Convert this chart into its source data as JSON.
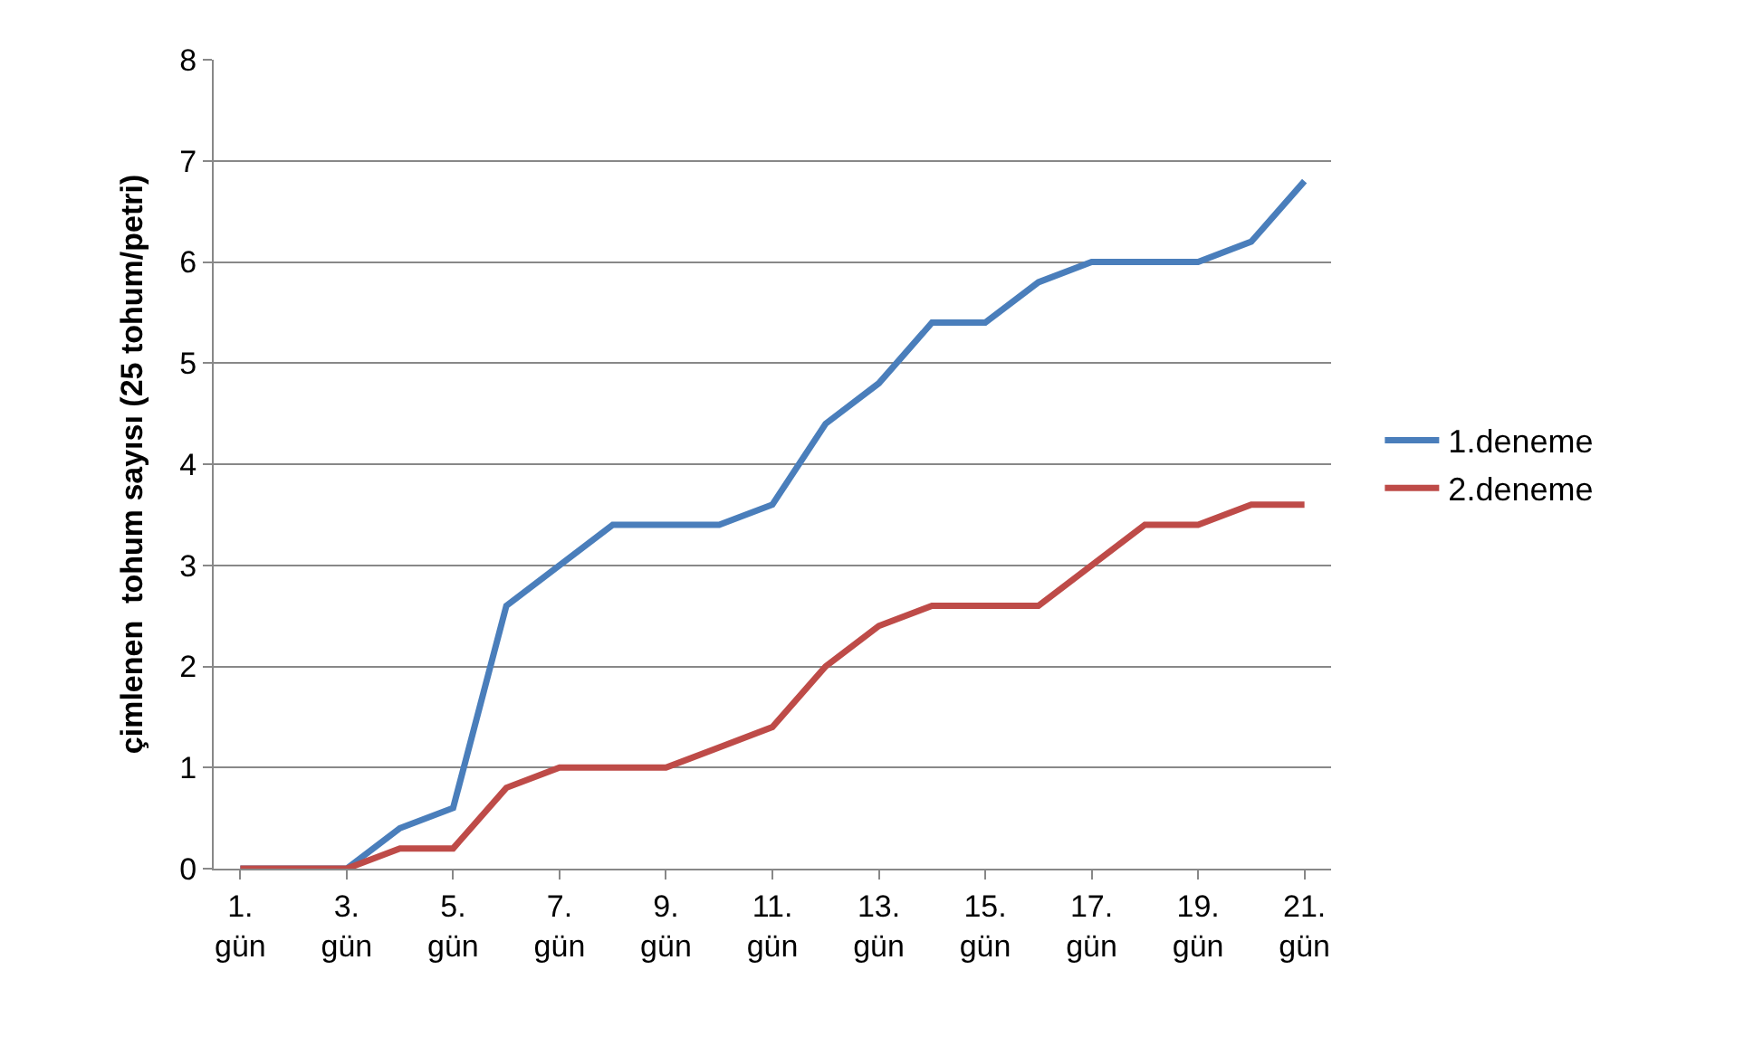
{
  "chart_data": {
    "type": "line",
    "ylabel": "çimlenen  tohum sayısı (25 tohum/petri)",
    "categories": [
      "1. gün",
      null,
      "3. gün",
      null,
      "5. gün",
      null,
      "7. gün",
      null,
      "9. gün",
      null,
      "11. gün",
      null,
      "13. gün",
      null,
      "15. gün",
      null,
      "17. gün",
      null,
      "19. gün",
      null,
      "21. gün"
    ],
    "series": [
      {
        "name": "1.deneme",
        "color": "#4a7ebb",
        "values": [
          0,
          0,
          0,
          0.4,
          0.6,
          2.6,
          3.0,
          3.4,
          3.4,
          3.4,
          3.6,
          4.4,
          4.8,
          5.4,
          5.4,
          5.8,
          6.0,
          6.0,
          6.0,
          6.2,
          6.8
        ]
      },
      {
        "name": "2.deneme",
        "color": "#be4b48",
        "values": [
          0,
          0,
          0,
          0.2,
          0.2,
          0.8,
          1.0,
          1.0,
          1.0,
          1.2,
          1.4,
          2.0,
          2.4,
          2.6,
          2.6,
          2.6,
          3.0,
          3.4,
          3.4,
          3.6,
          3.6
        ]
      }
    ],
    "ylim": [
      0,
      8
    ],
    "yticks": [
      0,
      1,
      2,
      3,
      4,
      5,
      6,
      7,
      8
    ],
    "grid": "y",
    "legend": "right",
    "marker": "none",
    "line_style": "solid"
  }
}
